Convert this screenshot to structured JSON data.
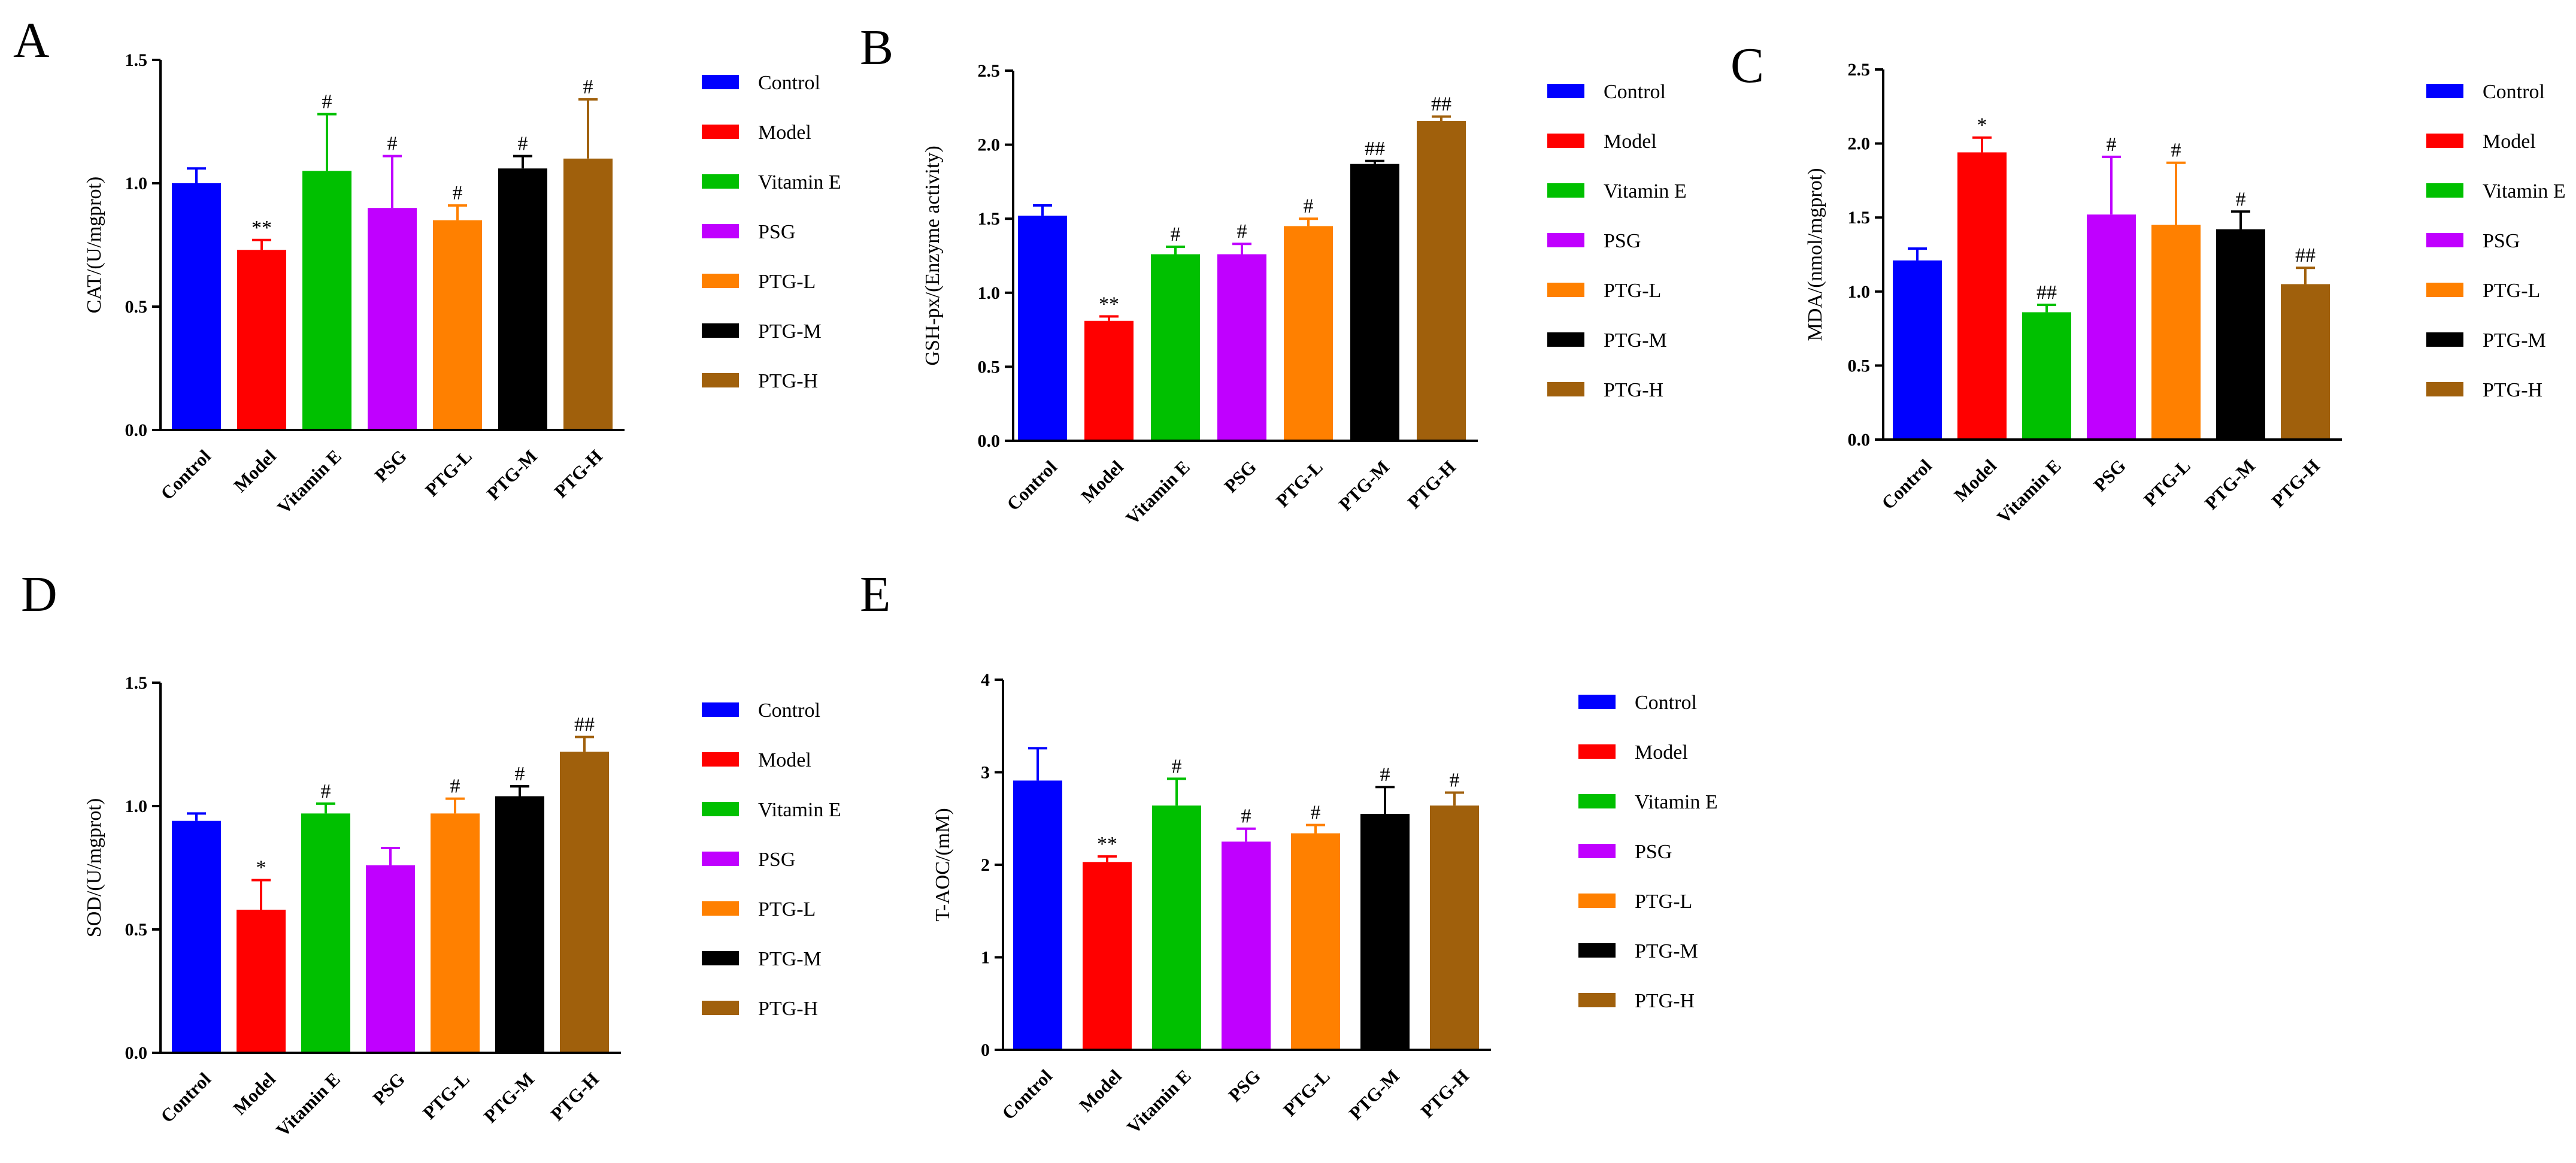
{
  "categories": [
    "Control",
    "Model",
    "Vitamin E",
    "PSG",
    "PTG-L",
    "PTG-M",
    "PTG-H"
  ],
  "colors": [
    "#0000ff",
    "#ff0000",
    "#00c000",
    "#c000ff",
    "#ff8000",
    "#000000",
    "#a0600c"
  ],
  "chart_data": [
    {
      "panel": "A",
      "type": "bar",
      "ylabel": "CAT/(U/mgprot)",
      "ylim": [
        0,
        1.5
      ],
      "yticks": [
        "0.0",
        "0.5",
        "1.0",
        "1.5"
      ],
      "ytick_values": [
        0,
        0.5,
        1.0,
        1.5
      ],
      "values": [
        1.0,
        0.73,
        1.05,
        0.9,
        0.85,
        1.06,
        1.1
      ],
      "errors": [
        0.06,
        0.04,
        0.23,
        0.21,
        0.06,
        0.05,
        0.24
      ],
      "significance": [
        "",
        "**",
        "#",
        "#",
        "#",
        "#",
        "#"
      ]
    },
    {
      "panel": "B",
      "type": "bar",
      "ylabel": "GSH-px/(Enzyme activity)",
      "ylim": [
        0,
        2.5
      ],
      "yticks": [
        "0.0",
        "0.5",
        "1.0",
        "1.5",
        "2.0",
        "2.5"
      ],
      "ytick_values": [
        0,
        0.5,
        1.0,
        1.5,
        2.0,
        2.5
      ],
      "values": [
        1.52,
        0.81,
        1.26,
        1.26,
        1.45,
        1.87,
        2.16
      ],
      "errors": [
        0.07,
        0.03,
        0.05,
        0.07,
        0.05,
        0.02,
        0.03
      ],
      "significance": [
        "",
        "**",
        "#",
        "#",
        "#",
        "##",
        "##"
      ]
    },
    {
      "panel": "C",
      "type": "bar",
      "ylabel": "MDA/(nmol/mgprot)",
      "ylim": [
        0,
        2.5
      ],
      "yticks": [
        "0.0",
        "0.5",
        "1.0",
        "1.5",
        "2.0",
        "2.5"
      ],
      "ytick_values": [
        0,
        0.5,
        1.0,
        1.5,
        2.0,
        2.5
      ],
      "values": [
        1.21,
        1.94,
        0.86,
        1.52,
        1.45,
        1.42,
        1.05
      ],
      "errors": [
        0.08,
        0.1,
        0.05,
        0.39,
        0.42,
        0.12,
        0.11
      ],
      "significance": [
        "",
        "*",
        "##",
        "#",
        "#",
        "#",
        "##"
      ]
    },
    {
      "panel": "D",
      "type": "bar",
      "ylabel": "SOD/(U/mgprot)",
      "ylim": [
        0,
        1.5
      ],
      "yticks": [
        "0.0",
        "0.5",
        "1.0",
        "1.5"
      ],
      "ytick_values": [
        0,
        0.5,
        1.0,
        1.5
      ],
      "values": [
        0.94,
        0.58,
        0.97,
        0.76,
        0.97,
        1.04,
        1.22
      ],
      "errors": [
        0.03,
        0.12,
        0.04,
        0.07,
        0.06,
        0.04,
        0.06
      ],
      "significance": [
        "",
        "*",
        "#",
        "",
        "#",
        "#",
        "##"
      ]
    },
    {
      "panel": "E",
      "type": "bar",
      "ylabel": "T-AOC/(mM)",
      "ylim": [
        0,
        4
      ],
      "yticks": [
        "0",
        "1",
        "2",
        "3",
        "4"
      ],
      "ytick_values": [
        0,
        1,
        2,
        3,
        4
      ],
      "values": [
        2.91,
        2.03,
        2.64,
        2.25,
        2.34,
        2.55,
        2.64
      ],
      "errors": [
        0.35,
        0.06,
        0.29,
        0.14,
        0.09,
        0.29,
        0.14
      ],
      "significance": [
        "",
        "**",
        "#",
        "#",
        "#",
        "#",
        "#"
      ]
    }
  ]
}
